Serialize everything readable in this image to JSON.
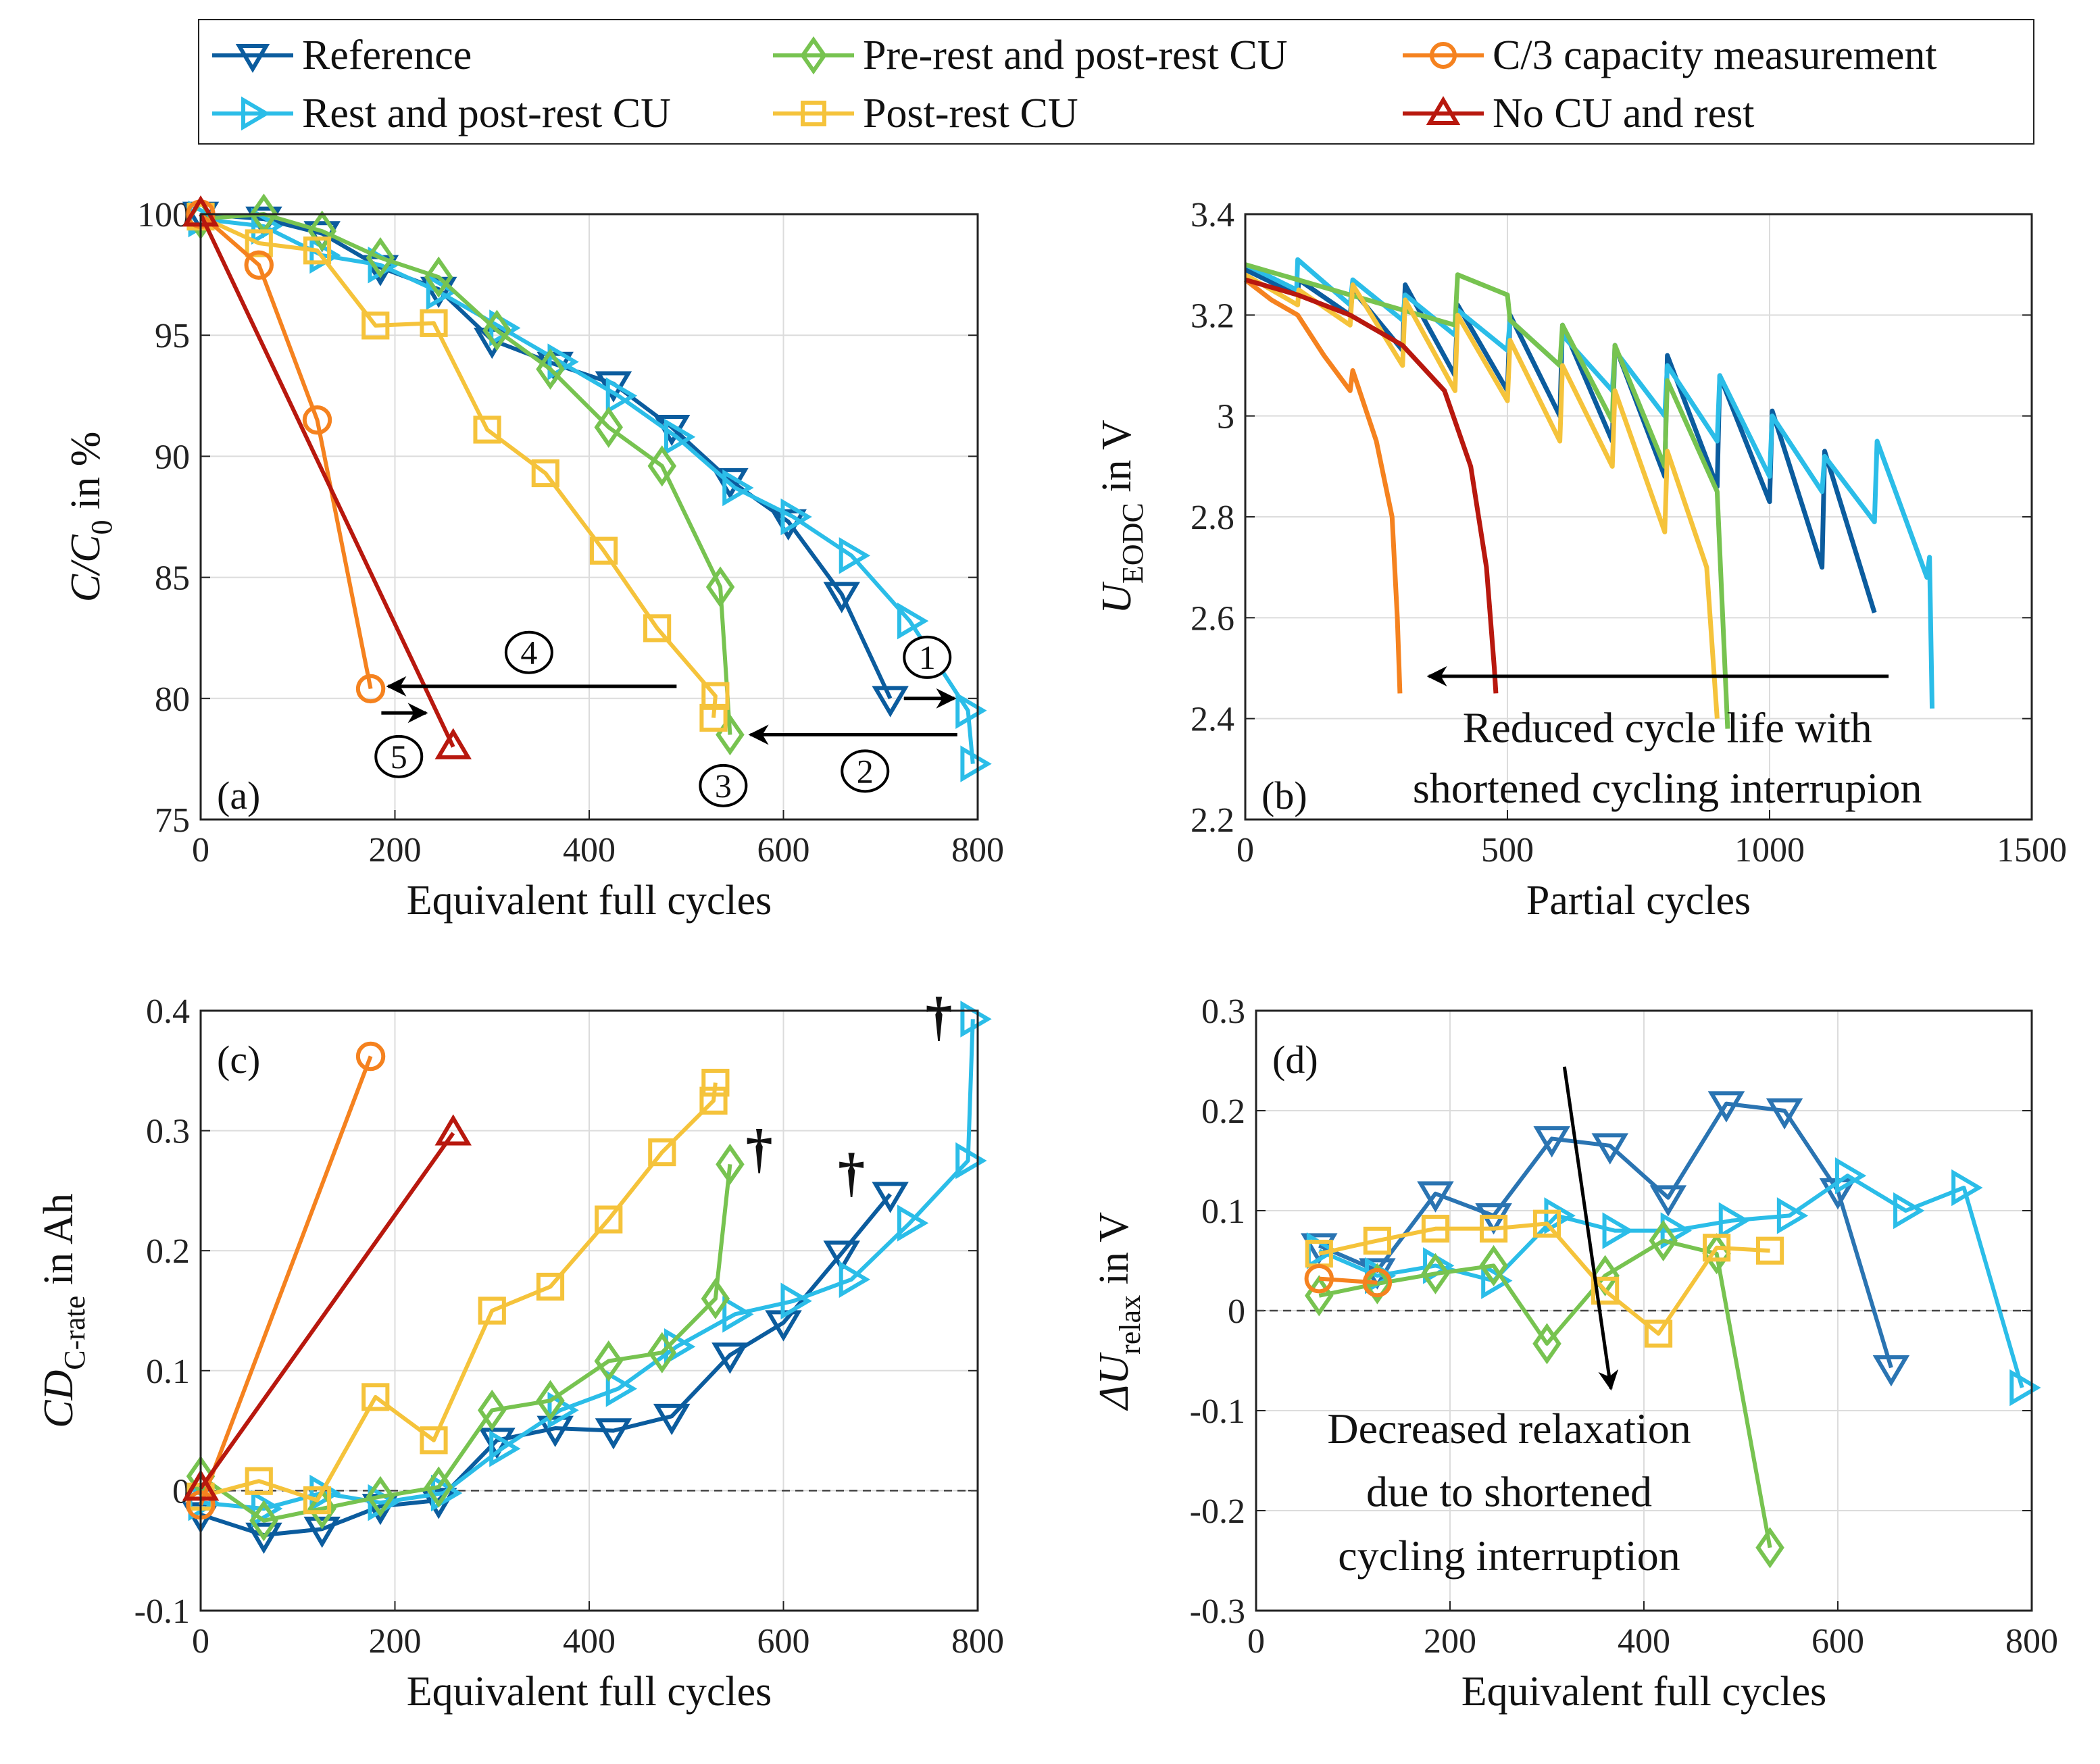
{
  "legend": {
    "items": [
      {
        "label": "Reference",
        "color": "#0b5c9e",
        "marker": "triangle-down"
      },
      {
        "label": "Pre-rest and post-rest CU",
        "color": "#77c350",
        "marker": "diamond"
      },
      {
        "label": "C/3 capacity measurement",
        "color": "#f5821f",
        "marker": "circle"
      },
      {
        "label": "Rest and post-rest CU",
        "color": "#2bbde8",
        "marker": "triangle-right"
      },
      {
        "label": "Post-rest CU",
        "color": "#f5c33b",
        "marker": "square"
      },
      {
        "label": "No CU and rest",
        "color": "#b8180e",
        "marker": "triangle-up"
      }
    ]
  },
  "chart_data": [
    {
      "type": "line",
      "panel_label": "(a)",
      "xlabel": "Equivalent full cycles",
      "ylabel": {
        "main": "C/C",
        "sub": "0",
        "rest": " in %"
      },
      "xlim": [
        0,
        800
      ],
      "ylim": [
        75,
        100
      ],
      "xticks": [
        "0",
        "200",
        "400",
        "600",
        "800"
      ],
      "yticks": [
        "75",
        "80",
        "85",
        "90",
        "95",
        "100"
      ],
      "grid": true,
      "series": [
        {
          "name": "Reference",
          "color": "#0b5c9e",
          "marker": "triangle-down",
          "x": [
            0,
            65,
            125,
            185,
            245,
            300,
            365,
            425,
            485,
            545,
            605,
            660,
            710
          ],
          "y": [
            100,
            99.8,
            99.2,
            97.8,
            96.9,
            94.8,
            93.8,
            93,
            91.2,
            89,
            87.3,
            84.3,
            80
          ]
        },
        {
          "name": "Rest and post-rest CU",
          "color": "#2bbde8",
          "marker": "triangle-right",
          "x": [
            0,
            65,
            125,
            185,
            245,
            310,
            370,
            430,
            490,
            550,
            610,
            670,
            730,
            790,
            795
          ],
          "y": [
            99.8,
            99.5,
            98.3,
            97.9,
            96.8,
            95.3,
            93.9,
            92.5,
            90.8,
            88.7,
            87.5,
            85.9,
            83.2,
            79.5,
            77.3
          ]
        },
        {
          "name": "Pre-rest and post-rest CU",
          "color": "#77c350",
          "marker": "diamond",
          "x": [
            0,
            65,
            125,
            185,
            245,
            305,
            360,
            420,
            475,
            535,
            545
          ],
          "y": [
            99.8,
            100,
            99.3,
            98.2,
            97.4,
            95.2,
            93.6,
            91.2,
            89.6,
            84.6,
            78.5
          ]
        },
        {
          "name": "Post-rest CU",
          "color": "#f5c33b",
          "marker": "square",
          "x": [
            0,
            60,
            120,
            180,
            240,
            295,
            355,
            415,
            470,
            530,
            528
          ],
          "y": [
            99.9,
            98.8,
            98.5,
            95.4,
            95.5,
            91.1,
            89.3,
            86.1,
            82.9,
            80.1,
            79.2
          ]
        },
        {
          "name": "C/3 capacity measurement",
          "color": "#f5821f",
          "marker": "circle",
          "x": [
            0,
            60,
            120,
            175
          ],
          "y": [
            100,
            97.9,
            91.5,
            80.4
          ]
        },
        {
          "name": "No CU and rest",
          "color": "#b8180e",
          "marker": "triangle-up",
          "x": [
            0,
            260
          ],
          "y": [
            100,
            78
          ]
        }
      ],
      "annotations": [
        {
          "text": "1",
          "type": "circled",
          "x": 748,
          "y": 81.7
        },
        {
          "text": "2",
          "type": "circled",
          "x": 684,
          "y": 77.0
        },
        {
          "text": "3",
          "type": "circled",
          "x": 538,
          "y": 76.4
        },
        {
          "text": "4",
          "type": "circled",
          "x": 338,
          "y": 81.9
        },
        {
          "text": "5",
          "type": "circled",
          "x": 204,
          "y": 77.6
        }
      ],
      "arrows": [
        {
          "from": [
            724,
            80.0
          ],
          "to": [
            776,
            80.0
          ]
        },
        {
          "from": [
            779,
            78.5
          ],
          "to": [
            566,
            78.5
          ]
        },
        {
          "from": [
            490,
            80.5
          ],
          "to": [
            193,
            80.5
          ]
        },
        {
          "from": [
            186,
            79.4
          ],
          "to": [
            232,
            79.4
          ]
        }
      ]
    },
    {
      "type": "line",
      "panel_label": "(b)",
      "xlabel": "Partial cycles",
      "ylabel": {
        "main": "U",
        "sub": "EODC",
        "rest": " in V"
      },
      "xlim": [
        0,
        1500
      ],
      "ylim": [
        2.2,
        3.4
      ],
      "xticks": [
        "0",
        "500",
        "1000",
        "1500"
      ],
      "yticks": [
        "2.2",
        "2.4",
        "2.6",
        "2.8",
        "3",
        "3.2",
        "3.4"
      ],
      "grid": true,
      "series": [
        {
          "name": "Reference",
          "color": "#0b5c9e",
          "x": [
            0,
            100,
            102,
            200,
            205,
            300,
            305,
            400,
            405,
            500,
            505,
            600,
            605,
            700,
            705,
            800,
            805,
            900,
            905,
            1000,
            1005,
            1100,
            1105,
            1200
          ],
          "y": [
            3.29,
            3.24,
            3.27,
            3.2,
            3.25,
            3.13,
            3.26,
            3.08,
            3.22,
            3.05,
            3.2,
            3.0,
            3.18,
            2.95,
            3.14,
            2.88,
            3.12,
            2.86,
            3.08,
            2.83,
            3.01,
            2.7,
            2.93,
            2.61
          ]
        },
        {
          "name": "Rest and post-rest CU",
          "color": "#2bbde8",
          "x": [
            0,
            98,
            100,
            200,
            205,
            300,
            305,
            400,
            405,
            500,
            505,
            600,
            605,
            700,
            705,
            800,
            805,
            900,
            905,
            1000,
            1005,
            1100,
            1105,
            1200,
            1205,
            1300,
            1305,
            1310
          ],
          "y": [
            3.3,
            3.25,
            3.31,
            3.22,
            3.27,
            3.19,
            3.24,
            3.16,
            3.21,
            3.13,
            3.19,
            3.1,
            3.16,
            3.05,
            3.13,
            3.0,
            3.1,
            2.95,
            3.08,
            2.88,
            3.0,
            2.85,
            2.92,
            2.79,
            2.95,
            2.68,
            2.72,
            2.42
          ]
        },
        {
          "name": "Pre-rest and post-rest CU",
          "color": "#77c350",
          "x": [
            0,
            200,
            400,
            405,
            500,
            505,
            600,
            605,
            700,
            705,
            800,
            805,
            900,
            920
          ],
          "y": [
            3.3,
            3.24,
            3.18,
            3.28,
            3.24,
            3.19,
            3.1,
            3.18,
            2.99,
            3.14,
            2.9,
            3.07,
            2.85,
            2.38
          ]
        },
        {
          "name": "Post-rest CU",
          "color": "#f5c33b",
          "x": [
            0,
            100,
            102,
            200,
            205,
            300,
            305,
            400,
            405,
            500,
            505,
            600,
            605,
            700,
            705,
            800,
            805,
            880,
            900
          ],
          "y": [
            3.28,
            3.22,
            3.25,
            3.18,
            3.26,
            3.1,
            3.23,
            3.05,
            3.2,
            3.03,
            3.15,
            2.95,
            3.1,
            2.9,
            3.05,
            2.77,
            2.93,
            2.7,
            2.4
          ]
        },
        {
          "name": "C/3 capacity measurement",
          "color": "#f5821f",
          "x": [
            0,
            50,
            100,
            150,
            200,
            205,
            250,
            280,
            290,
            295
          ],
          "y": [
            3.27,
            3.23,
            3.2,
            3.12,
            3.05,
            3.09,
            2.95,
            2.8,
            2.6,
            2.45
          ]
        },
        {
          "name": "No CU and rest",
          "color": "#b8180e",
          "x": [
            0,
            100,
            200,
            300,
            380,
            430,
            460,
            475,
            478
          ],
          "y": [
            3.27,
            3.24,
            3.2,
            3.14,
            3.05,
            2.9,
            2.7,
            2.5,
            2.45
          ]
        }
      ],
      "annotations": [
        {
          "text": "Reduced cycle life with",
          "type": "text",
          "x": 805,
          "y": 2.38
        },
        {
          "text": "shortened cycling interrupion",
          "type": "text",
          "x": 805,
          "y": 2.26
        }
      ],
      "arrows": [
        {
          "from": [
            1227,
            2.484
          ],
          "to": [
            350,
            2.484
          ]
        }
      ]
    },
    {
      "type": "line",
      "panel_label": "(c)",
      "xlabel": "Equivalent full cycles",
      "ylabel": {
        "main": "CD",
        "sub": "C-rate",
        "rest": " in Ah"
      },
      "xlim": [
        0,
        800
      ],
      "ylim": [
        -0.1,
        0.4
      ],
      "xticks": [
        "0",
        "200",
        "400",
        "600",
        "800"
      ],
      "yticks": [
        "-0.1",
        "0",
        "0.1",
        "0.2",
        "0.3",
        "0.4"
      ],
      "grid": true,
      "zero_line": "dashed",
      "series": [
        {
          "name": "Reference",
          "color": "#0b5c9e",
          "marker": "triangle-down",
          "x": [
            0,
            65,
            125,
            185,
            245,
            305,
            365,
            425,
            485,
            545,
            600,
            660,
            710
          ],
          "y": [
            -0.02,
            -0.037,
            -0.032,
            -0.013,
            -0.008,
            0.042,
            0.052,
            0.05,
            0.062,
            0.113,
            0.14,
            0.198,
            0.247
          ]
        },
        {
          "name": "Rest and post-rest CU",
          "color": "#2bbde8",
          "marker": "triangle-right",
          "x": [
            0,
            65,
            125,
            185,
            250,
            310,
            370,
            430,
            490,
            550,
            610,
            670,
            730,
            790,
            795
          ],
          "y": [
            -0.01,
            -0.015,
            -0.002,
            -0.01,
            -0.002,
            0.035,
            0.067,
            0.085,
            0.12,
            0.147,
            0.158,
            0.176,
            0.223,
            0.275,
            0.393
          ]
        },
        {
          "name": "Pre-rest and post-rest CU",
          "color": "#77c350",
          "marker": "diamond",
          "x": [
            0,
            65,
            125,
            185,
            245,
            300,
            360,
            420,
            475,
            530,
            545
          ],
          "y": [
            0.012,
            -0.025,
            -0.015,
            -0.005,
            0.003,
            0.067,
            0.075,
            0.108,
            0.115,
            0.16,
            0.272
          ]
        },
        {
          "name": "Post-rest CU",
          "color": "#f5c33b",
          "marker": "square",
          "x": [
            0,
            60,
            120,
            180,
            240,
            300,
            360,
            420,
            475,
            528,
            530
          ],
          "y": [
            -0.005,
            0.008,
            -0.008,
            0.078,
            0.042,
            0.15,
            0.17,
            0.226,
            0.282,
            0.325,
            0.34
          ]
        },
        {
          "name": "C/3 capacity measurement",
          "color": "#f5821f",
          "marker": "circle",
          "x": [
            0,
            175
          ],
          "y": [
            -0.012,
            0.362
          ]
        },
        {
          "name": "No CU and rest",
          "color": "#b8180e",
          "marker": "triangle-up",
          "x": [
            0,
            260
          ],
          "y": [
            0.002,
            0.298
          ]
        }
      ],
      "annotations": [
        {
          "text": "†",
          "type": "dagger",
          "x": 575,
          "y": 0.27
        },
        {
          "text": "†",
          "type": "dagger",
          "x": 670,
          "y": 0.25
        },
        {
          "text": "†",
          "type": "dagger",
          "x": 760,
          "y": 0.38
        }
      ],
      "arrows": []
    },
    {
      "type": "line",
      "panel_label": "(d)",
      "xlabel": "Equivalent full cycles",
      "ylabel": {
        "main": "ΔU",
        "sub": "relax",
        "rest": " in V"
      },
      "xlim": [
        0,
        800
      ],
      "ylim": [
        -0.3,
        0.3
      ],
      "xticks": [
        "0",
        "200",
        "400",
        "600",
        "800"
      ],
      "yticks": [
        "-0.3",
        "-0.2",
        "-0.1",
        "0",
        "0.1",
        "0.2",
        "0.3"
      ],
      "grid": true,
      "zero_line": "dashed",
      "series": [
        {
          "name": "Reference",
          "color": "#2a74b2",
          "marker": "triangle-down",
          "x": [
            65,
            125,
            185,
            245,
            305,
            365,
            425,
            485,
            545,
            600,
            655
          ],
          "y": [
            0.065,
            0.04,
            0.117,
            0.095,
            0.172,
            0.165,
            0.113,
            0.207,
            0.2,
            0.12,
            -0.057
          ]
        },
        {
          "name": "Rest and post-rest CU",
          "color": "#2bbde8",
          "marker": "triangle-right",
          "x": [
            65,
            125,
            185,
            245,
            310,
            370,
            430,
            490,
            550,
            610,
            670,
            730,
            790
          ],
          "y": [
            0.06,
            0.035,
            0.045,
            0.03,
            0.095,
            0.08,
            0.08,
            0.09,
            0.095,
            0.135,
            0.1,
            0.123,
            -0.077
          ]
        },
        {
          "name": "Pre-rest and post-rest CU",
          "color": "#77c350",
          "marker": "diamond",
          "x": [
            65,
            125,
            185,
            245,
            300,
            360,
            420,
            475,
            530
          ],
          "y": [
            0.015,
            0.027,
            0.037,
            0.045,
            -0.033,
            0.035,
            0.07,
            0.057,
            -0.237
          ]
        },
        {
          "name": "Post-rest CU",
          "color": "#f5c33b",
          "marker": "square",
          "x": [
            65,
            125,
            185,
            245,
            300,
            360,
            415,
            475,
            530
          ],
          "y": [
            0.057,
            0.07,
            0.082,
            0.082,
            0.087,
            0.02,
            -0.023,
            0.063,
            0.06
          ]
        },
        {
          "name": "C/3 capacity measurement",
          "color": "#f5821f",
          "marker": "circle",
          "x": [
            65,
            125
          ],
          "y": [
            0.032,
            0.028
          ]
        }
      ],
      "annotations": [
        {
          "text": "Decreased relaxation",
          "type": "text",
          "x": 261,
          "y": -0.119
        },
        {
          "text": "due to shortened",
          "type": "text",
          "x": 261,
          "y": -0.182
        },
        {
          "text": "cycling interruption",
          "type": "text",
          "x": 261,
          "y": -0.246
        }
      ],
      "arrows": [
        {
          "from": [
            318,
            0.244
          ],
          "to": [
            366,
            -0.078
          ]
        }
      ]
    }
  ]
}
